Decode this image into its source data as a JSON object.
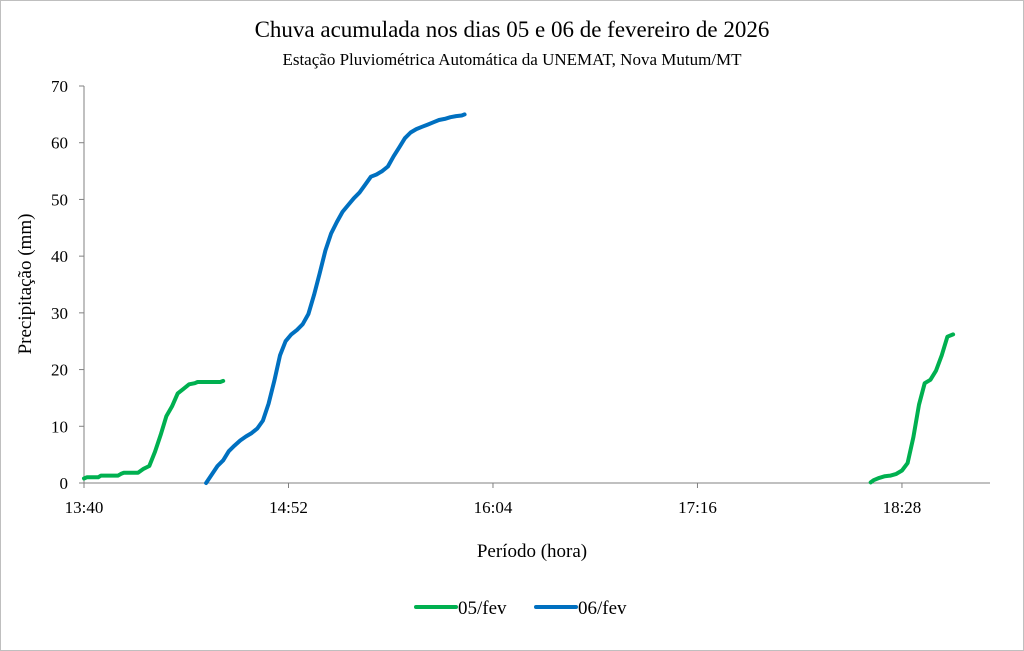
{
  "chart_data": {
    "type": "line",
    "title": "Chuva acumulada nos dias 05 e 06 de fevereiro de 2026",
    "subtitle": "Estação Pluviométrica Automática da UNEMAT, Nova Mutum/MT",
    "xlabel": "Período (hora)",
    "ylabel": "Precipitação (mm)",
    "x_ticks": [
      "13:40",
      "14:52",
      "16:04",
      "17:16",
      "18:28"
    ],
    "y_ticks": [
      "0",
      "10",
      "20",
      "30",
      "40",
      "50",
      "60",
      "70"
    ],
    "ylim": [
      0,
      70
    ],
    "xlim": [
      "13:40",
      "18:59"
    ],
    "grid": false,
    "legend_position": "bottom",
    "series": [
      {
        "name": "05/fev",
        "color": "#00b050",
        "segments": [
          [
            [
              "13:40",
              0.8
            ],
            [
              "13:41",
              1.0
            ],
            [
              "13:45",
              1.0
            ],
            [
              "13:46",
              1.3
            ],
            [
              "13:52",
              1.3
            ],
            [
              "13:53",
              1.6
            ],
            [
              "13:54",
              1.8
            ],
            [
              "13:59",
              1.8
            ],
            [
              "14:01",
              2.5
            ],
            [
              "14:03",
              3.0
            ],
            [
              "14:05",
              5.5
            ],
            [
              "14:07",
              8.5
            ],
            [
              "14:09",
              11.8
            ],
            [
              "14:11",
              13.5
            ],
            [
              "14:13",
              15.8
            ],
            [
              "14:15",
              16.6
            ],
            [
              "14:17",
              17.4
            ],
            [
              "14:19",
              17.6
            ],
            [
              "14:20",
              17.8
            ],
            [
              "14:28",
              17.8
            ],
            [
              "14:29",
              18.0
            ]
          ],
          [
            [
              "18:17",
              0.1
            ],
            [
              "18:18",
              0.5
            ],
            [
              "18:20",
              0.9
            ],
            [
              "18:22",
              1.2
            ],
            [
              "18:24",
              1.3
            ],
            [
              "18:26",
              1.6
            ],
            [
              "18:28",
              2.2
            ],
            [
              "18:30",
              3.5
            ],
            [
              "18:32",
              8.0
            ],
            [
              "18:34",
              13.8
            ],
            [
              "18:36",
              17.6
            ],
            [
              "18:38",
              18.2
            ],
            [
              "18:40",
              19.8
            ],
            [
              "18:42",
              22.5
            ],
            [
              "18:44",
              25.8
            ],
            [
              "18:46",
              26.2
            ]
          ]
        ]
      },
      {
        "name": "06/fev",
        "color": "#0070c0",
        "segments": [
          [
            [
              "14:23",
              0.0
            ],
            [
              "14:25",
              1.5
            ],
            [
              "14:27",
              3.0
            ],
            [
              "14:29",
              4.0
            ],
            [
              "14:31",
              5.6
            ],
            [
              "14:33",
              6.6
            ],
            [
              "14:35",
              7.5
            ],
            [
              "14:37",
              8.2
            ],
            [
              "14:39",
              8.8
            ],
            [
              "14:41",
              9.6
            ],
            [
              "14:43",
              11.0
            ],
            [
              "14:45",
              14.0
            ],
            [
              "14:47",
              18.0
            ],
            [
              "14:49",
              22.5
            ],
            [
              "14:51",
              25.0
            ],
            [
              "14:53",
              26.2
            ],
            [
              "14:55",
              27.0
            ],
            [
              "14:57",
              28.0
            ],
            [
              "14:59",
              29.8
            ],
            [
              "15:01",
              33.2
            ],
            [
              "15:03",
              37.0
            ],
            [
              "15:05",
              41.0
            ],
            [
              "15:07",
              44.0
            ],
            [
              "15:09",
              46.0
            ],
            [
              "15:11",
              47.8
            ],
            [
              "15:13",
              49.0
            ],
            [
              "15:15",
              50.2
            ],
            [
              "15:17",
              51.2
            ],
            [
              "15:19",
              52.6
            ],
            [
              "15:21",
              54.0
            ],
            [
              "15:23",
              54.4
            ],
            [
              "15:25",
              55.0
            ],
            [
              "15:27",
              55.8
            ],
            [
              "15:29",
              57.6
            ],
            [
              "15:31",
              59.2
            ],
            [
              "15:33",
              60.8
            ],
            [
              "15:35",
              61.8
            ],
            [
              "15:37",
              62.4
            ],
            [
              "15:39",
              62.8
            ],
            [
              "15:41",
              63.2
            ],
            [
              "15:43",
              63.6
            ],
            [
              "15:45",
              64.0
            ],
            [
              "15:47",
              64.2
            ],
            [
              "15:49",
              64.5
            ],
            [
              "15:51",
              64.7
            ],
            [
              "15:53",
              64.8
            ],
            [
              "15:54",
              65.0
            ]
          ]
        ]
      }
    ]
  }
}
